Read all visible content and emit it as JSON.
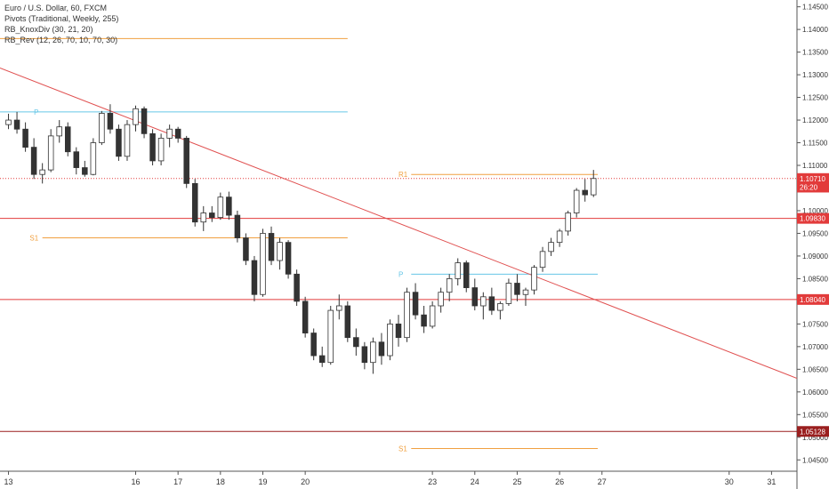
{
  "legend": {
    "title": "Euro / U.S. Dollar, 60, FXCM",
    "pivots": "Pivots (Traditional, Weekly, 255)",
    "knoxdiv": "RB_KnoxDiv (30, 21, 20)",
    "rev": "RB_Rev (12, 26, 70, 10, 70, 30)"
  },
  "chart_data": {
    "type": "candlestick",
    "y_ticks": [
      "1.14500",
      "1.14000",
      "1.13500",
      "1.13000",
      "1.12500",
      "1.12000",
      "1.11500",
      "1.11000",
      "1.10500",
      "1.10000",
      "1.09500",
      "1.09000",
      "1.08500",
      "1.08000",
      "1.07500",
      "1.07000",
      "1.06500",
      "1.06000",
      "1.05500",
      "1.05000",
      "1.04500"
    ],
    "ylim": [
      1.0425,
      1.1465
    ],
    "x_ticks": [
      "13",
      "16",
      "17",
      "18",
      "19",
      "20",
      "23",
      "24",
      "25",
      "26",
      "27",
      "30",
      "31"
    ],
    "xlim": [
      12.8,
      31.6
    ],
    "candles": [
      [
        13.0,
        1.119,
        1.1214,
        1.118,
        1.12
      ],
      [
        13.2,
        1.12,
        1.1218,
        1.117,
        1.118
      ],
      [
        13.4,
        1.118,
        1.1195,
        1.113,
        1.114
      ],
      [
        13.6,
        1.114,
        1.116,
        1.107,
        1.108
      ],
      [
        13.8,
        1.108,
        1.1105,
        1.106,
        1.109
      ],
      [
        14.0,
        1.109,
        1.118,
        1.1085,
        1.1165
      ],
      [
        14.2,
        1.1165,
        1.12,
        1.115,
        1.1185
      ],
      [
        14.4,
        1.1185,
        1.1195,
        1.112,
        1.113
      ],
      [
        14.6,
        1.113,
        1.114,
        1.108,
        1.1095
      ],
      [
        14.8,
        1.1095,
        1.111,
        1.1075,
        1.108
      ],
      [
        15.0,
        1.108,
        1.116,
        1.1078,
        1.115
      ],
      [
        15.2,
        1.115,
        1.122,
        1.1145,
        1.1215
      ],
      [
        15.4,
        1.1215,
        1.1235,
        1.117,
        1.118
      ],
      [
        15.6,
        1.118,
        1.119,
        1.111,
        1.112
      ],
      [
        15.8,
        1.112,
        1.12,
        1.111,
        1.119
      ],
      [
        16.0,
        1.119,
        1.1232,
        1.1175,
        1.1225
      ],
      [
        16.2,
        1.1225,
        1.123,
        1.116,
        1.117
      ],
      [
        16.4,
        1.117,
        1.118,
        1.11,
        1.111
      ],
      [
        16.6,
        1.111,
        1.117,
        1.11,
        1.116
      ],
      [
        16.8,
        1.116,
        1.119,
        1.114,
        1.118
      ],
      [
        17.0,
        1.118,
        1.1185,
        1.115,
        1.116
      ],
      [
        17.2,
        1.116,
        1.1165,
        1.105,
        1.106
      ],
      [
        17.4,
        1.106,
        1.107,
        1.0965,
        1.0975
      ],
      [
        17.6,
        1.0975,
        1.101,
        1.0955,
        1.0995
      ],
      [
        17.8,
        1.0995,
        1.101,
        1.0975,
        1.0985
      ],
      [
        18.0,
        1.0985,
        1.104,
        1.098,
        1.103
      ],
      [
        18.2,
        1.103,
        1.1042,
        1.098,
        1.099
      ],
      [
        18.4,
        1.099,
        1.1,
        1.093,
        1.094
      ],
      [
        18.6,
        1.094,
        1.095,
        1.088,
        1.089
      ],
      [
        18.8,
        1.089,
        1.09,
        1.08,
        1.0815
      ],
      [
        19.0,
        1.0815,
        1.096,
        1.081,
        1.095
      ],
      [
        19.2,
        1.095,
        1.0965,
        1.088,
        1.089
      ],
      [
        19.4,
        1.089,
        1.094,
        1.087,
        1.093
      ],
      [
        19.6,
        1.093,
        1.0935,
        1.085,
        1.086
      ],
      [
        19.8,
        1.086,
        1.087,
        1.079,
        1.08
      ],
      [
        20.0,
        1.08,
        1.081,
        1.072,
        1.073
      ],
      [
        20.2,
        1.073,
        1.074,
        1.067,
        1.068
      ],
      [
        20.4,
        1.068,
        1.07,
        1.0655,
        1.0665
      ],
      [
        20.6,
        1.0665,
        1.079,
        1.066,
        1.078
      ],
      [
        20.8,
        1.078,
        1.0815,
        1.076,
        1.079
      ],
      [
        21.0,
        1.079,
        1.08,
        1.071,
        1.072
      ],
      [
        21.2,
        1.072,
        1.074,
        1.068,
        1.07
      ],
      [
        21.4,
        1.07,
        1.071,
        1.065,
        1.0665
      ],
      [
        21.6,
        1.0665,
        1.072,
        1.064,
        1.071
      ],
      [
        21.8,
        1.071,
        1.073,
        1.066,
        1.068
      ],
      [
        22.0,
        1.068,
        1.076,
        1.067,
        1.075
      ],
      [
        22.2,
        1.075,
        1.077,
        1.07,
        1.072
      ],
      [
        22.4,
        1.072,
        1.083,
        1.071,
        1.082
      ],
      [
        22.6,
        1.082,
        1.084,
        1.076,
        1.077
      ],
      [
        22.8,
        1.077,
        1.079,
        1.073,
        1.0745
      ],
      [
        23.0,
        1.0745,
        1.08,
        1.074,
        1.079
      ],
      [
        23.2,
        1.079,
        1.083,
        1.0775,
        1.082
      ],
      [
        23.4,
        1.082,
        1.086,
        1.08,
        1.085
      ],
      [
        23.6,
        1.085,
        1.0895,
        1.0835,
        1.0885
      ],
      [
        23.8,
        1.0885,
        1.089,
        1.082,
        1.083
      ],
      [
        24.0,
        1.083,
        1.085,
        1.078,
        1.079
      ],
      [
        24.2,
        1.079,
        1.082,
        1.076,
        1.081
      ],
      [
        24.4,
        1.081,
        1.083,
        1.077,
        1.078
      ],
      [
        24.6,
        1.078,
        1.08,
        1.076,
        1.0795
      ],
      [
        24.8,
        1.0795,
        1.085,
        1.079,
        1.084
      ],
      [
        25.0,
        1.084,
        1.086,
        1.08,
        1.0815
      ],
      [
        25.2,
        1.0815,
        1.083,
        1.079,
        1.0825
      ],
      [
        25.4,
        1.0825,
        1.088,
        1.0815,
        1.0875
      ],
      [
        25.6,
        1.0875,
        1.092,
        1.0865,
        1.091
      ],
      [
        25.8,
        1.091,
        1.094,
        1.09,
        1.093
      ],
      [
        26.0,
        1.093,
        1.096,
        1.092,
        1.0955
      ],
      [
        26.2,
        1.0955,
        1.1,
        1.0945,
        1.0995
      ],
      [
        26.4,
        1.0995,
        1.105,
        1.0985,
        1.1045
      ],
      [
        26.6,
        1.1045,
        1.107,
        1.102,
        1.1035
      ],
      [
        26.8,
        1.1035,
        1.109,
        1.103,
        1.1071
      ]
    ],
    "levels": [
      {
        "name": "R1",
        "value": 1.108,
        "color": "#f0a040",
        "x_from": 22.5,
        "x_to": 26.9,
        "text_x": 22.2
      },
      {
        "name": "P",
        "value": 1.086,
        "color": "#66c6e6",
        "x_from": 22.5,
        "x_to": 26.9,
        "text_x": 22.2
      },
      {
        "name": "S1",
        "value": 1.0475,
        "color": "#f0a040",
        "x_from": 22.5,
        "x_to": 26.9,
        "text_x": 22.2
      },
      {
        "name": "P",
        "value": 1.1218,
        "color": "#66c6e6",
        "x_from": 12.8,
        "x_to": 21.0,
        "text_x": 13.6
      },
      {
        "name": "S1",
        "value": 1.094,
        "color": "#f0a040",
        "x_from": 13.8,
        "x_to": 21.0,
        "text_x": 13.5
      },
      {
        "name": "R1",
        "value": 1.138,
        "color": "#f0a040",
        "x_from": 12.8,
        "x_to": 21.0,
        "text_x": -1
      }
    ],
    "horizontals": [
      {
        "value": 1.0983,
        "color": "#e23b3b"
      },
      {
        "value": 1.0804,
        "color": "#e23b3b"
      },
      {
        "value": 1.05128,
        "color": "#9a1f1f"
      },
      {
        "value": 1.1071,
        "color": "#e23b3b",
        "dashed": true
      }
    ],
    "price_tags": [
      {
        "label": "1.10710",
        "value": 1.1071,
        "color": "#e23b3b"
      },
      {
        "label": "26:20",
        "value": 1.1052,
        "color": "#e23b3b"
      },
      {
        "label": "1.09830",
        "value": 1.0983,
        "color": "#e23b3b"
      },
      {
        "label": "1.08040",
        "value": 1.0804,
        "color": "#e23b3b"
      },
      {
        "label": "1.05128",
        "value": 1.05128,
        "color": "#9a1f1f"
      }
    ],
    "trendline": {
      "x1": 12.8,
      "y1": 1.1315,
      "x2": 31.6,
      "y2": 1.063,
      "color": "#e05050"
    }
  }
}
